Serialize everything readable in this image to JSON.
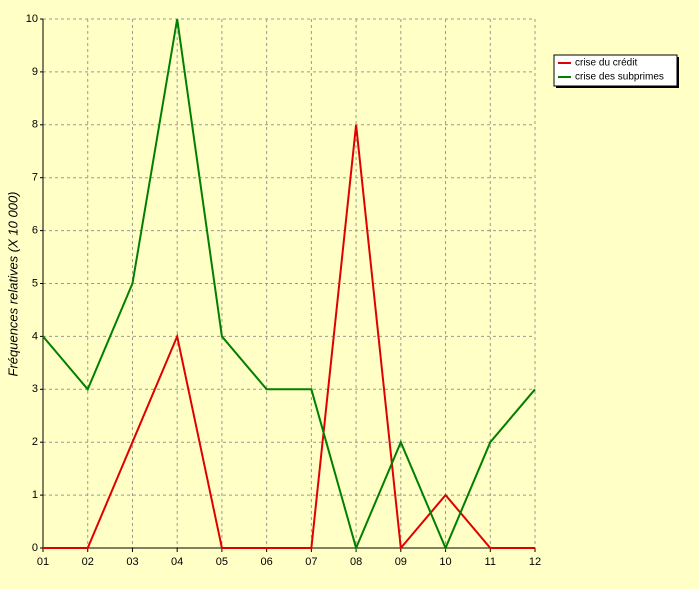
{
  "chart_data": {
    "type": "line",
    "y_label": "Fréquences relatives (X 10 000)",
    "categories": [
      "01",
      "02",
      "03",
      "04",
      "05",
      "06",
      "07",
      "08",
      "09",
      "10",
      "11",
      "12"
    ],
    "series": [
      {
        "name": "crise du crédit",
        "color": "#e00000",
        "values": [
          0,
          0,
          2,
          4,
          0,
          0,
          0,
          8,
          0,
          1,
          0,
          0
        ]
      },
      {
        "name": "crise des subprimes",
        "color": "#008000",
        "values": [
          4,
          3,
          5,
          10,
          4,
          3,
          3,
          0,
          2,
          0,
          2,
          3
        ]
      }
    ],
    "ylim": [
      0,
      10
    ],
    "yticks": [
      0,
      1,
      2,
      3,
      4,
      5,
      6,
      7,
      8,
      9,
      10
    ],
    "grid": true,
    "legend": "top-right"
  }
}
